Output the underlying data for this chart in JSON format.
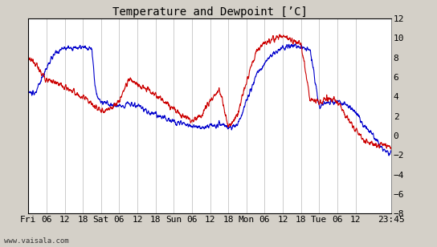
{
  "title": "Temperature and Dewpoint [ʼC]",
  "ylim": [
    -8,
    12
  ],
  "yticks": [
    -8,
    -6,
    -4,
    -2,
    0,
    2,
    4,
    6,
    8,
    10,
    12
  ],
  "x_tick_labels": [
    "Fri",
    "06",
    "12",
    "18",
    "Sat",
    "06",
    "12",
    "18",
    "Sun",
    "06",
    "12",
    "18",
    "Mon",
    "06",
    "12",
    "18",
    "Tue",
    "06",
    "12",
    "23:45"
  ],
  "x_tick_positions": [
    0,
    6,
    12,
    18,
    24,
    30,
    36,
    42,
    48,
    54,
    60,
    66,
    72,
    78,
    84,
    90,
    96,
    102,
    108,
    119.75
  ],
  "total_hours": 119.75,
  "bg_color": "#d4d0c8",
  "plot_bg_color": "#ffffff",
  "grid_color": "#b8b8b8",
  "temp_color": "#0000cc",
  "dewpoint_color": "#cc0000",
  "watermark": "www.vaisala.com",
  "title_fontsize": 10,
  "tick_fontsize": 8,
  "line_width": 0.8,
  "temp_keypoints_x": [
    0,
    2,
    4,
    6,
    9,
    12,
    15,
    18,
    20,
    21,
    22,
    23,
    24,
    27,
    30,
    33,
    36,
    39,
    42,
    45,
    48,
    51,
    54,
    57,
    60,
    63,
    66,
    69,
    72,
    75,
    78,
    81,
    84,
    87,
    90,
    93,
    96,
    99,
    102,
    105,
    108,
    111,
    114,
    117,
    119.75
  ],
  "temp_keypoints_y": [
    4.5,
    4.2,
    5.5,
    7.0,
    8.5,
    9.0,
    9.0,
    9.0,
    8.9,
    8.8,
    5.0,
    3.8,
    3.5,
    3.2,
    3.0,
    3.3,
    3.0,
    2.5,
    2.2,
    1.8,
    1.5,
    1.3,
    1.0,
    0.8,
    1.0,
    1.2,
    0.8,
    1.0,
    3.5,
    6.0,
    7.5,
    8.5,
    9.0,
    9.2,
    9.0,
    8.8,
    3.0,
    3.5,
    3.5,
    3.2,
    2.5,
    1.0,
    0.0,
    -1.5,
    -1.8
  ],
  "dew_keypoints_x": [
    0,
    2,
    4,
    6,
    8,
    10,
    12,
    15,
    18,
    20,
    21,
    22,
    23,
    24,
    27,
    30,
    33,
    36,
    39,
    42,
    45,
    48,
    51,
    54,
    57,
    60,
    63,
    66,
    69,
    72,
    75,
    78,
    81,
    84,
    87,
    90,
    93,
    96,
    99,
    102,
    105,
    108,
    111,
    114,
    117,
    119.75
  ],
  "dew_keypoints_y": [
    8.0,
    7.5,
    6.5,
    5.8,
    5.5,
    5.2,
    5.0,
    4.5,
    3.8,
    3.5,
    3.2,
    3.0,
    2.8,
    2.5,
    2.8,
    3.5,
    5.8,
    5.2,
    4.8,
    4.2,
    3.5,
    2.8,
    2.0,
    1.5,
    2.0,
    3.5,
    4.8,
    1.0,
    2.0,
    5.5,
    8.5,
    9.5,
    10.0,
    10.2,
    9.8,
    9.5,
    3.5,
    3.5,
    3.8,
    3.5,
    2.0,
    0.5,
    -0.5,
    -1.0,
    -0.8,
    -1.2
  ]
}
